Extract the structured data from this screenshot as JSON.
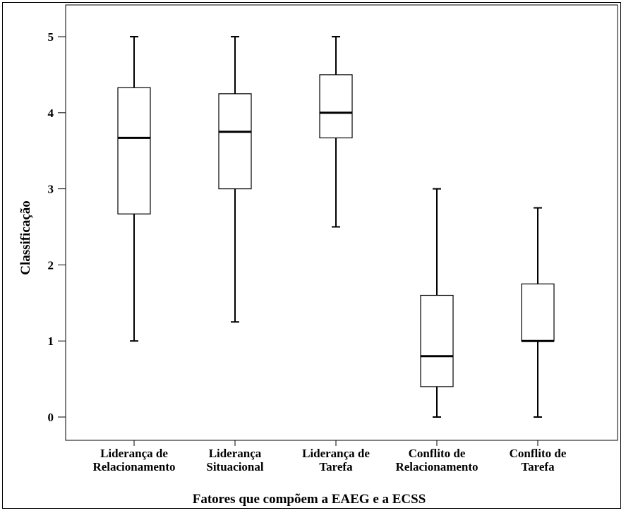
{
  "chart_data": {
    "type": "boxplot",
    "title": "",
    "xlabel": "Fatores que compõem a EAEG e a ECSS",
    "ylabel": "Classificação",
    "ylim": [
      0,
      5
    ],
    "yticks": [
      "0",
      "1",
      "2",
      "3",
      "4",
      "5"
    ],
    "grid": false,
    "categories": [
      [
        "Liderança de",
        "Relacionamento"
      ],
      [
        "Liderança",
        "Situacional"
      ],
      [
        "Liderança de",
        "Tarefa"
      ],
      [
        "Conflito de",
        "Relacionamento"
      ],
      [
        "Conflito de",
        "Tarefa"
      ]
    ],
    "boxes": [
      {
        "min": 1.0,
        "q1": 2.67,
        "median": 3.67,
        "q3": 4.33,
        "max": 5.0
      },
      {
        "min": 1.25,
        "q1": 3.0,
        "median": 3.75,
        "q3": 4.25,
        "max": 5.0
      },
      {
        "min": 2.5,
        "q1": 3.67,
        "median": 4.0,
        "q3": 4.5,
        "max": 5.0
      },
      {
        "min": 0.0,
        "q1": 0.4,
        "median": 0.8,
        "q3": 1.6,
        "max": 3.0
      },
      {
        "min": 0.0,
        "q1": 1.0,
        "median": 1.0,
        "q3": 1.75,
        "max": 2.75
      }
    ]
  }
}
